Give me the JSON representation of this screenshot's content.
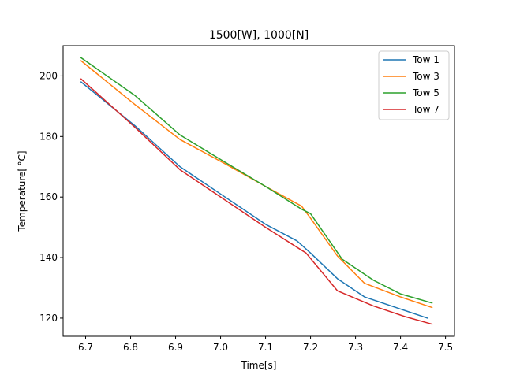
{
  "chart_data": {
    "type": "line",
    "title": "1500[W], 1000[N]",
    "xlabel": "Time[s]",
    "ylabel": "Temperature[$^\\circ$C]",
    "ylabel_display": "Temperature[ °C]",
    "xlim": [
      6.65,
      7.52
    ],
    "ylim": [
      114,
      210
    ],
    "xticks": [
      6.7,
      6.8,
      6.9,
      7.0,
      7.1,
      7.2,
      7.3,
      7.4,
      7.5
    ],
    "yticks": [
      120,
      140,
      160,
      180,
      200
    ],
    "legend_position": "top-right",
    "grid": false,
    "series": [
      {
        "name": "Tow 1",
        "color": "#1f77b4",
        "x": [
          6.69,
          6.81,
          6.91,
          7.01,
          7.1,
          7.17,
          7.2,
          7.26,
          7.32,
          7.4,
          7.46
        ],
        "y": [
          198.0,
          183.5,
          170.0,
          160.0,
          151.0,
          145.5,
          141.5,
          133.0,
          127.0,
          123.0,
          120.0
        ]
      },
      {
        "name": "Tow 3",
        "color": "#ff7f0e",
        "x": [
          6.69,
          6.81,
          6.91,
          7.01,
          7.1,
          7.18,
          7.2,
          7.26,
          7.32,
          7.4,
          7.47
        ],
        "y": [
          205.0,
          190.5,
          179.0,
          171.0,
          163.5,
          157.0,
          153.0,
          140.5,
          131.5,
          127.0,
          123.5
        ]
      },
      {
        "name": "Tow 5",
        "color": "#2ca02c",
        "x": [
          6.69,
          6.81,
          6.91,
          7.01,
          7.1,
          7.18,
          7.2,
          7.27,
          7.34,
          7.4,
          7.47
        ],
        "y": [
          206.0,
          193.5,
          180.5,
          171.5,
          163.5,
          156.0,
          154.5,
          139.5,
          132.5,
          128.0,
          125.0
        ]
      },
      {
        "name": "Tow 7",
        "color": "#d62728",
        "x": [
          6.69,
          6.81,
          6.91,
          7.01,
          7.1,
          7.19,
          7.26,
          7.34,
          7.41,
          7.47
        ],
        "y": [
          199.0,
          183.0,
          169.0,
          159.0,
          150.0,
          141.5,
          129.0,
          124.0,
          120.5,
          118.0
        ]
      }
    ]
  }
}
